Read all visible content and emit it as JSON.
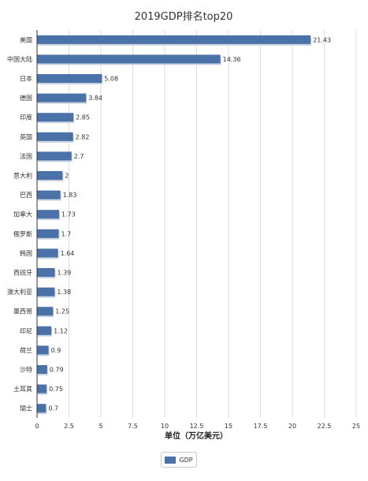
{
  "chart_data": {
    "type": "bar",
    "orientation": "horizontal",
    "title": "2019GDP排名top20",
    "xlabel": "单位（万亿美元）",
    "categories": [
      "美国",
      "中国大陆",
      "日本",
      "德国",
      "印度",
      "英国",
      "法国",
      "意大利",
      "巴西",
      "加拿大",
      "俄罗斯",
      "韩国",
      "西班牙",
      "澳大利亚",
      "墨西哥",
      "印尼",
      "荷兰",
      "沙特",
      "土耳其",
      "瑞士"
    ],
    "series": [
      {
        "name": "GDP",
        "values": [
          21.43,
          14.36,
          5.08,
          3.84,
          2.85,
          2.82,
          2.7,
          2,
          1.83,
          1.73,
          1.7,
          1.64,
          1.39,
          1.38,
          1.25,
          1.12,
          0.9,
          0.79,
          0.75,
          0.7
        ]
      }
    ],
    "value_labels": [
      "21.43",
      "14.36",
      "5.08",
      "3.84",
      "2.85",
      "2.82",
      "2.7",
      "2",
      "1.83",
      "1.73",
      "1.7",
      "1.64",
      "1.39",
      "1.38",
      "1.25",
      "1.12",
      "0.9",
      "0.79",
      "0.75",
      "0.7"
    ],
    "xlim": [
      0,
      25
    ],
    "xticks": [
      "0",
      "2.5",
      "5",
      "7.5",
      "10",
      "12.5",
      "15",
      "17.5",
      "20",
      "22.5",
      "25"
    ],
    "grid": true,
    "legend_position": "bottom",
    "bar_color": "#4a72a8"
  }
}
